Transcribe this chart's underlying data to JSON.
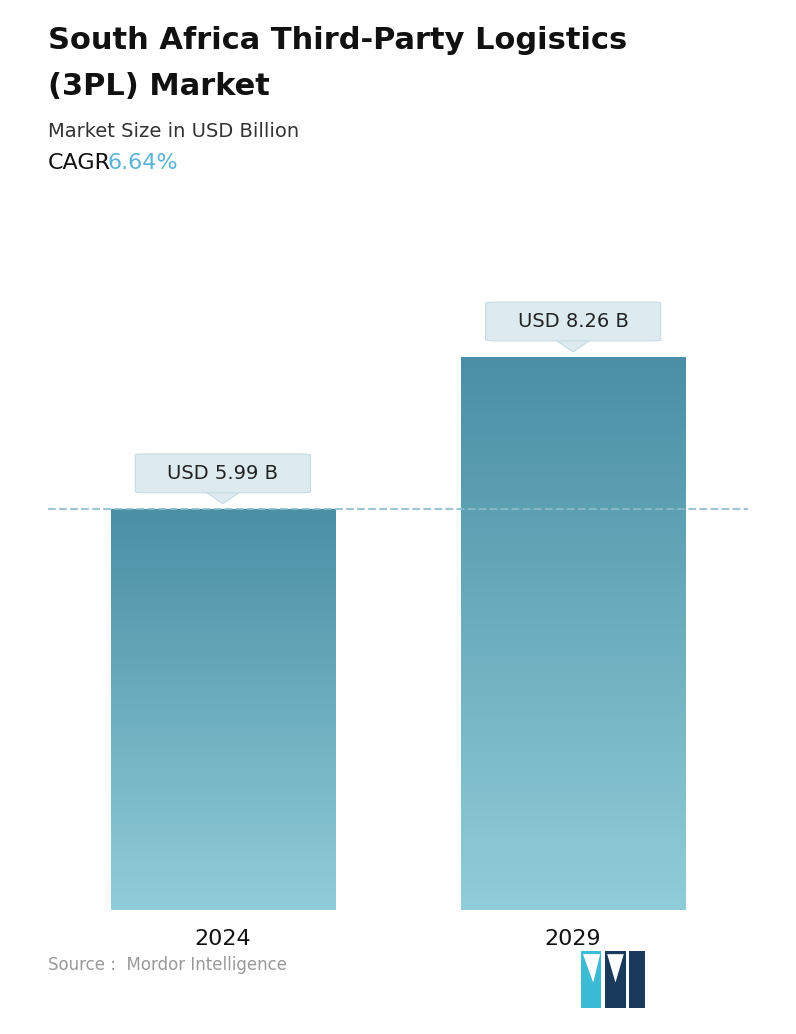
{
  "title_line1": "South Africa Third-Party Logistics",
  "title_line2": "(3PL) Market",
  "subtitle": "Market Size in USD Billion",
  "cagr_label": "CAGR",
  "cagr_value": "6.64%",
  "cagr_color": "#5ab4d6",
  "categories": [
    "2024",
    "2029"
  ],
  "values": [
    5.99,
    8.26
  ],
  "value_labels": [
    "USD 5.99 B",
    "USD 8.26 B"
  ],
  "bar_color_top": "#4a8fa5",
  "bar_color_bottom": "#90cdd8",
  "dashed_line_color": "#8bbcca",
  "source_text": "Source :  Mordor Intelligence",
  "source_color": "#999999",
  "background_color": "#ffffff",
  "title_fontsize": 22,
  "subtitle_fontsize": 14,
  "cagr_fontsize": 16,
  "tick_fontsize": 16,
  "label_fontsize": 14,
  "source_fontsize": 12
}
